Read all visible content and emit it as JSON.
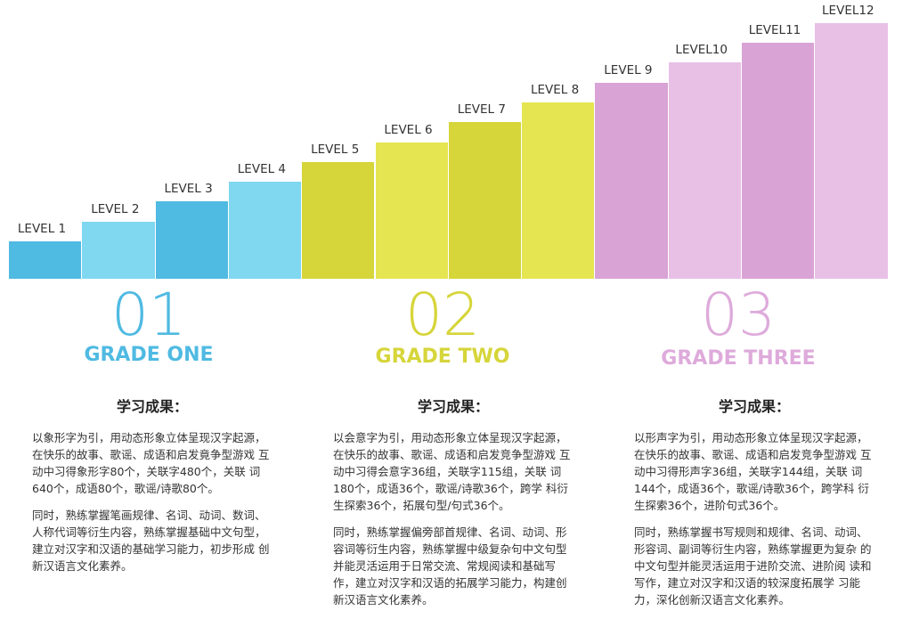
{
  "levels": [
    "LEVEL 1",
    "LEVEL 2",
    "LEVEL 3",
    "LEVEL 4",
    "LEVEL 5",
    "LEVEL 6",
    "LEVEL 7",
    "LEVEL 8",
    "LEVEL 9",
    "LEVEL10",
    "LEVEL11",
    "LEVEL12"
  ],
  "grades": [
    {
      "number": "01",
      "name": "GRADE ONE",
      "heading": "学习成果：",
      "paragraphs": [
        "以象形字为引，用动态形象立体呈现汉字起源， 在快乐的故事、歌谣、成语和启发竟争型游戏 互动中习得象形字80个，关联字480个，关联 词640个，成语80个，歌谣/诗歌80个。",
        "同时，熟练掌握笔画规律、名词、动词、数词、 人称代词等衍生内容，熟练掌握基础中文句型， 建立对汉字和汉语的基础学习能力，初步形成 创新汉语言文化素养。"
      ]
    },
    {
      "number": "02",
      "name": "GRADE TWO",
      "heading": "学习成果：",
      "paragraphs": [
        "以会意字为引，用动态形象立体呈现汉字起源， 在快乐的故事、歌谣、成语和启发竞争型游戏 互动中习得会意字36组，关联字115组，关联 词180个，成语36个，歌谣/诗歌36个，跨学 科衍生探索36个，拓展句型/句式36个。",
        "同时，熟练掌握偏旁部首规律、名词、动词、形容词等衍生内容，熟练掌握中级复杂句中文句型并能灵活运用于日常交流、常规阅读和基础写作，建立对汉字和汉语的拓展学习能力，构建创新汉语言文化素养。"
      ]
    },
    {
      "number": "03",
      "name": "GRADE THREE",
      "heading": "学习成果：",
      "paragraphs": [
        "以形声字为引，用动态形象立体呈现汉字起源， 在快乐的故事、歌谣、成语和启发竞争型游戏 互动中习得形声字36组，关联字144组，关联 词144个，成语36个，歌谣/诗歌36个，跨学科 衍生探索36个，进阶句式36个。",
        "同时，熟练掌握书写规则和规律、名词、动词、 形容词、副词等衍生内容，熟练掌握更为复杂 的中文句型并能灵活运用于进阶交流、进阶阅 读和写作，建立对汉字和汉语的较深度拓展学 习能力，深化创新汉语言文化素养。"
      ]
    }
  ]
}
